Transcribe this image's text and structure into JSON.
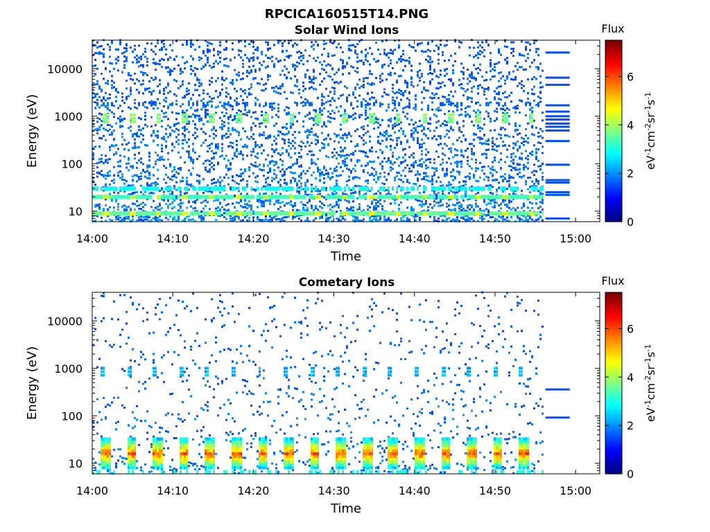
{
  "figure_title": "RPCICA160515T14.PNG",
  "chart_data": [
    {
      "type": "heatmap",
      "title": "Solar Wind Ions",
      "xlabel": "Time",
      "ylabel": "Energy (eV)",
      "x_ticks": [
        "14:00",
        "14:10",
        "14:20",
        "14:30",
        "14:40",
        "14:50",
        "15:00"
      ],
      "xlim": [
        "14:00",
        "15:03"
      ],
      "data_end": "14:56",
      "y_scale": "log",
      "y_ticks": [
        10,
        100,
        1000,
        10000
      ],
      "ylim": [
        6,
        40000
      ],
      "colorbar": {
        "label": "Flux",
        "unit": "eV-1cm-2sr-1s-1",
        "range": [
          0,
          7.5
        ],
        "ticks": [
          0,
          2,
          4,
          6
        ],
        "colormap": "jet"
      },
      "bands": [
        {
          "energy": 9,
          "intensity": 0.45,
          "density": 0.9,
          "pulsed": true
        },
        {
          "energy": 20,
          "intensity": 0.42,
          "density": 0.9,
          "pulsed": true
        },
        {
          "energy": 30,
          "intensity": 0.36,
          "density": 0.6,
          "pulsed": false
        },
        {
          "energy": 900,
          "intensity": 0.45,
          "density": 0.0,
          "pulsed": true,
          "pulse_only": true
        },
        {
          "energy": 1800,
          "intensity": 0.2,
          "density": 0.2,
          "pulsed": false
        }
      ],
      "pulse_period_min": 3.3,
      "pulse_phase_min": 1.2,
      "scatter_intensity": [
        0.18,
        0.32
      ],
      "scatter_per_column": 22,
      "right_lines": {
        "energies": [
          22000,
          6500,
          4600,
          1700,
          1250,
          1000,
          850,
          700,
          600,
          500,
          300,
          95,
          45,
          40,
          25,
          22,
          7
        ],
        "intensity": 0.2
      }
    },
    {
      "type": "heatmap",
      "title": "Cometary Ions",
      "xlabel": "Time",
      "ylabel": "Energy (eV)",
      "x_ticks": [
        "14:00",
        "14:10",
        "14:20",
        "14:30",
        "14:40",
        "14:50",
        "15:00"
      ],
      "xlim": [
        "14:00",
        "15:03"
      ],
      "data_end": "14:56",
      "y_scale": "log",
      "y_ticks": [
        10,
        100,
        1000,
        10000
      ],
      "ylim": [
        6,
        40000
      ],
      "colorbar": {
        "label": "Flux",
        "unit": "eV-1cm-2sr-1s-1",
        "range": [
          0,
          7.5
        ],
        "ticks": [
          0,
          2,
          4,
          6
        ],
        "colormap": "jet"
      },
      "bursts": {
        "period_min": 3.25,
        "phase_min": 0.9,
        "energy_range": [
          8,
          32
        ],
        "peak_intensity": 0.78
      },
      "bands": [
        {
          "energy": 850,
          "intensity": 0.25,
          "density": 0.0,
          "pulsed": true,
          "pulse_only": true
        },
        {
          "energy": 6.5,
          "intensity": 0.38,
          "density": 0.35,
          "pulsed": false
        }
      ],
      "scatter_intensity": [
        0.18,
        0.3
      ],
      "scatter_per_column": 5,
      "right_lines": {
        "energies": [
          360,
          92
        ],
        "intensity": 0.2
      }
    }
  ]
}
